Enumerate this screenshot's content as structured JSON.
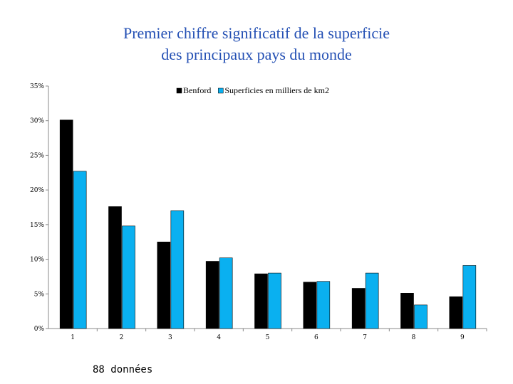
{
  "chart_data": {
    "type": "bar",
    "title_line1": "Premier chiffre significatif de la superficie",
    "title_line2": "des principaux pays du monde",
    "categories": [
      "1",
      "2",
      "3",
      "4",
      "5",
      "6",
      "7",
      "8",
      "9"
    ],
    "series": [
      {
        "name": "Benford",
        "color": "#000000",
        "values": [
          30.1,
          17.6,
          12.5,
          9.7,
          7.9,
          6.7,
          5.8,
          5.1,
          4.6
        ]
      },
      {
        "name": "Superficies en milliers de km2",
        "color": "#0ab0f0",
        "values": [
          22.7,
          14.8,
          17.0,
          10.2,
          8.0,
          6.8,
          8.0,
          3.4,
          9.1
        ]
      }
    ],
    "yticks": [
      "0%",
      "5%",
      "10%",
      "15%",
      "20%",
      "25%",
      "30%",
      "35%"
    ],
    "ylim": [
      0,
      35
    ],
    "grid": false,
    "legend_position": "top-right"
  },
  "footnote": "88 données"
}
